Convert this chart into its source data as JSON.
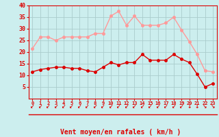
{
  "hours": [
    0,
    1,
    2,
    3,
    4,
    5,
    6,
    7,
    8,
    9,
    10,
    11,
    12,
    13,
    14,
    15,
    16,
    17,
    18,
    19,
    20,
    21,
    22,
    23
  ],
  "wind_mean": [
    11.5,
    12.5,
    13,
    13.5,
    13.5,
    13,
    13,
    12,
    11.5,
    13.5,
    15.5,
    14.5,
    15.5,
    15.5,
    19,
    16.5,
    16.5,
    16.5,
    19,
    17,
    15.5,
    10.5,
    5,
    6.5
  ],
  "wind_gust": [
    21.5,
    26.5,
    26.5,
    25,
    26.5,
    26.5,
    26.5,
    26.5,
    28,
    28,
    35.5,
    37.5,
    31.5,
    35.5,
    31.5,
    31.5,
    31.5,
    32.5,
    35,
    29.5,
    24.5,
    19,
    12,
    11.5
  ],
  "mean_color": "#dd0000",
  "gust_color": "#ff9999",
  "bg_color": "#cceeee",
  "grid_color": "#aacccc",
  "xlabel": "Vent moyen/en rafales ( km/h )",
  "xlabel_color": "#dd0000",
  "tick_color": "#dd0000",
  "ylim": [
    0,
    40
  ],
  "yticks": [
    5,
    10,
    15,
    20,
    25,
    30,
    35,
    40
  ],
  "marker_size": 2.5,
  "line_width": 1.0
}
